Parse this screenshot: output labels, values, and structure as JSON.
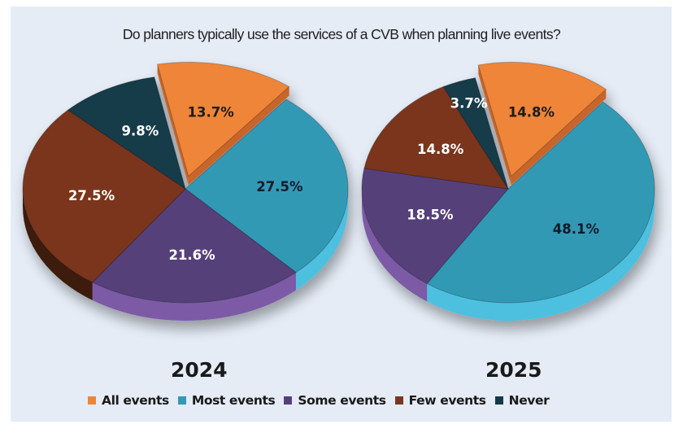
{
  "title": "Do planners typically use the services of a CVB when planning live events?",
  "chart_data": [
    {
      "type": "pie",
      "title": "2024",
      "categories": [
        "All events",
        "Most events",
        "Some events",
        "Few events",
        "Never"
      ],
      "values": [
        13.7,
        27.5,
        21.6,
        27.5,
        9.8
      ],
      "labels": [
        "13.7%",
        "27.5%",
        "21.6%",
        "27.5%",
        "9.8%"
      ],
      "exploded": [
        "All events"
      ],
      "style": "3d"
    },
    {
      "type": "pie",
      "title": "2025",
      "categories": [
        "All events",
        "Most events",
        "Some events",
        "Few events",
        "Never"
      ],
      "values": [
        14.8,
        48.1,
        18.5,
        14.8,
        3.7
      ],
      "labels": [
        "14.8%",
        "48.1%",
        "18.5%",
        "14.8%",
        "3.7%"
      ],
      "exploded": [
        "All events"
      ],
      "style": "3d"
    }
  ],
  "legend": {
    "placement": "bottom",
    "items": [
      {
        "label": "All events",
        "color": "#ef8538"
      },
      {
        "label": "Most events",
        "color": "#3399b5"
      },
      {
        "label": "Some events",
        "color": "#56407a"
      },
      {
        "label": "Few events",
        "color": "#7a361e"
      },
      {
        "label": "Never",
        "color": "#143a48"
      }
    ]
  },
  "colors": {
    "All events": {
      "top": "#ef8538",
      "side": "#c8652a",
      "label": "#1a1a1a"
    },
    "Most events": {
      "top": "#3399b5",
      "side": "#4ec0e0",
      "label": "#0e1a2a"
    },
    "Some events": {
      "top": "#56407a",
      "side": "#7b5aa6",
      "label": "#ffffff"
    },
    "Few events": {
      "top": "#7a361e",
      "side": "#3c1a10",
      "label": "#ffffff"
    },
    "Never": {
      "top": "#143a48",
      "side": "#0b2530",
      "label": "#ffffff"
    }
  }
}
